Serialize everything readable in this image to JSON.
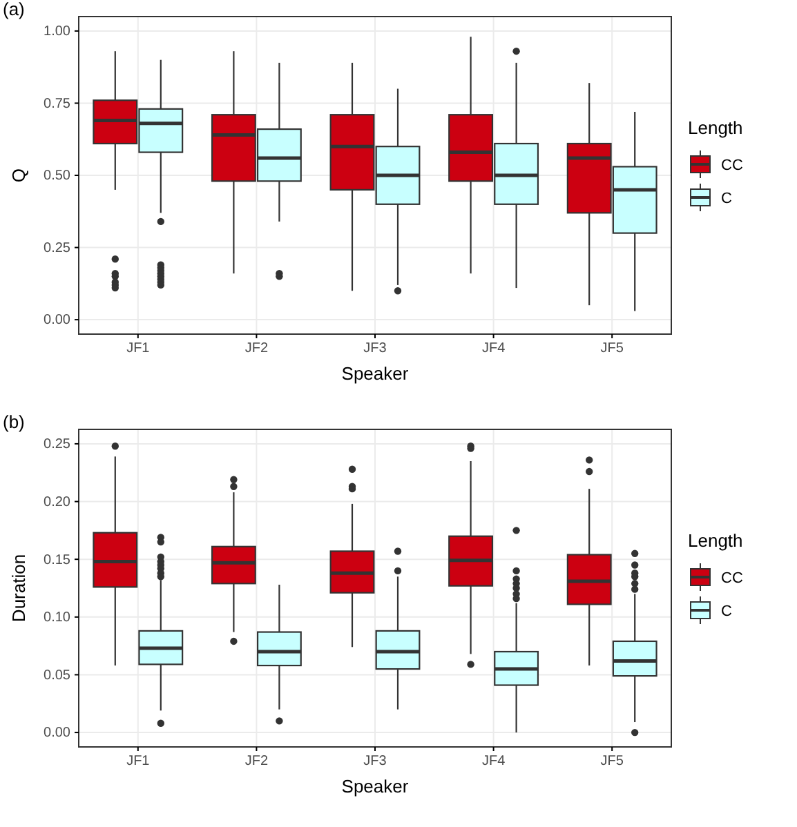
{
  "chart_data": [
    {
      "type": "box",
      "title": "(a)",
      "xlabel": "Speaker",
      "ylabel": "Q",
      "legend_title": "Length",
      "legend": "right",
      "grid": true,
      "categories": [
        "JF1",
        "JF2",
        "JF3",
        "JF4",
        "JF5"
      ],
      "ylim": [
        -0.05,
        1.05
      ],
      "yticks": [
        {
          "value": 0,
          "label": "0.00"
        },
        {
          "value": 0.25,
          "label": "0.25"
        },
        {
          "value": 0.5,
          "label": "0.50"
        },
        {
          "value": 0.75,
          "label": "0.75"
        },
        {
          "value": 1,
          "label": "1.00"
        }
      ],
      "series": [
        {
          "name": "CC",
          "color": "#cc0011",
          "boxes": [
            {
              "low": 0.45,
              "q1": 0.61,
              "median": 0.69,
              "q3": 0.76,
              "high": 0.93,
              "outliers": [
                0.21,
                0.16,
                0.15,
                0.13,
                0.12,
                0.11
              ]
            },
            {
              "low": 0.16,
              "q1": 0.48,
              "median": 0.64,
              "q3": 0.71,
              "high": 0.93
            },
            {
              "low": 0.1,
              "q1": 0.45,
              "median": 0.6,
              "q3": 0.71,
              "high": 0.89
            },
            {
              "low": 0.16,
              "q1": 0.48,
              "median": 0.58,
              "q3": 0.71,
              "high": 0.98
            },
            {
              "low": 0.05,
              "q1": 0.37,
              "median": 0.56,
              "q3": 0.61,
              "high": 0.82
            }
          ]
        },
        {
          "name": "C",
          "color": "#c8ffff",
          "boxes": [
            {
              "low": 0.37,
              "q1": 0.58,
              "median": 0.68,
              "q3": 0.73,
              "high": 0.9,
              "outliers": [
                0.34,
                0.19,
                0.18,
                0.17,
                0.16,
                0.15,
                0.14,
                0.13,
                0.12
              ]
            },
            {
              "low": 0.34,
              "q1": 0.48,
              "median": 0.56,
              "q3": 0.66,
              "high": 0.89,
              "outliers": [
                0.16,
                0.15
              ]
            },
            {
              "low": 0.12,
              "q1": 0.4,
              "median": 0.5,
              "q3": 0.6,
              "high": 0.8,
              "outliers": [
                0.1
              ]
            },
            {
              "low": 0.11,
              "q1": 0.4,
              "median": 0.5,
              "q3": 0.61,
              "high": 0.89,
              "outliers": [
                0.93
              ]
            },
            {
              "low": 0.03,
              "q1": 0.3,
              "median": 0.45,
              "q3": 0.53,
              "high": 0.72
            }
          ]
        }
      ]
    },
    {
      "type": "box",
      "title": "(b)",
      "xlabel": "Speaker",
      "ylabel": "Duration",
      "legend_title": "Length",
      "legend": "right",
      "grid": true,
      "categories": [
        "JF1",
        "JF2",
        "JF3",
        "JF4",
        "JF5"
      ],
      "ylim": [
        -0.0125,
        0.2625
      ],
      "yticks": [
        {
          "value": 0,
          "label": "0.00"
        },
        {
          "value": 0.05,
          "label": "0.05"
        },
        {
          "value": 0.1,
          "label": "0.10"
        },
        {
          "value": 0.15,
          "label": "0.15"
        },
        {
          "value": 0.2,
          "label": "0.20"
        },
        {
          "value": 0.25,
          "label": "0.25"
        }
      ],
      "series": [
        {
          "name": "CC",
          "color": "#cc0011",
          "boxes": [
            {
              "low": 0.058,
              "q1": 0.126,
              "median": 0.148,
              "q3": 0.173,
              "high": 0.239,
              "outliers": [
                0.248
              ]
            },
            {
              "low": 0.087,
              "q1": 0.129,
              "median": 0.147,
              "q3": 0.161,
              "high": 0.208,
              "outliers": [
                0.219,
                0.213,
                0.079
              ]
            },
            {
              "low": 0.074,
              "q1": 0.121,
              "median": 0.138,
              "q3": 0.157,
              "high": 0.198,
              "outliers": [
                0.228,
                0.213,
                0.211
              ]
            },
            {
              "low": 0.068,
              "q1": 0.127,
              "median": 0.149,
              "q3": 0.17,
              "high": 0.235,
              "outliers": [
                0.248,
                0.246,
                0.059
              ]
            },
            {
              "low": 0.058,
              "q1": 0.111,
              "median": 0.131,
              "q3": 0.154,
              "high": 0.211,
              "outliers": [
                0.236,
                0.226
              ]
            }
          ]
        },
        {
          "name": "C",
          "color": "#c8ffff",
          "boxes": [
            {
              "low": 0.019,
              "q1": 0.059,
              "median": 0.073,
              "q3": 0.088,
              "high": 0.132,
              "outliers": [
                0.169,
                0.165,
                0.152,
                0.148,
                0.145,
                0.142,
                0.138,
                0.135,
                0.008
              ]
            },
            {
              "low": 0.02,
              "q1": 0.058,
              "median": 0.07,
              "q3": 0.087,
              "high": 0.128,
              "outliers": [
                0.01
              ]
            },
            {
              "low": 0.02,
              "q1": 0.055,
              "median": 0.07,
              "q3": 0.088,
              "high": 0.135,
              "outliers": [
                0.157,
                0.14
              ]
            },
            {
              "low": 0,
              "q1": 0.041,
              "median": 0.055,
              "q3": 0.07,
              "high": 0.112,
              "outliers": [
                0.175,
                0.14,
                0.133,
                0.129,
                0.125,
                0.12,
                0.116
              ]
            },
            {
              "low": 0.009,
              "q1": 0.049,
              "median": 0.062,
              "q3": 0.079,
              "high": 0.12,
              "outliers": [
                0.155,
                0.145,
                0.138,
                0.135,
                0.129,
                0.124,
                0
              ]
            }
          ]
        }
      ]
    }
  ]
}
